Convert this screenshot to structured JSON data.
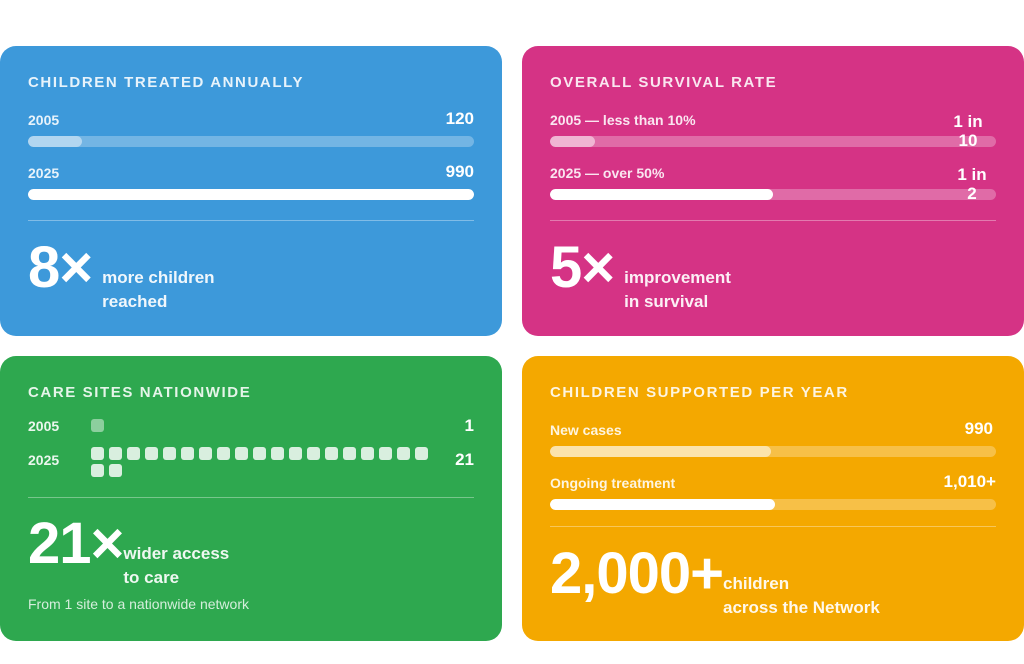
{
  "cards": {
    "children": {
      "title": "CHILDREN TREATED ANNUALLY",
      "color": "#3d99da",
      "rows": [
        {
          "label": "2005",
          "value": "120",
          "fraction": 0.12
        },
        {
          "label": "2025",
          "value": "990",
          "fraction": 1.0
        }
      ],
      "big": "8×",
      "caption_line1": "more children",
      "caption_line2": "reached"
    },
    "survival": {
      "title": "OVERALL SURVIVAL RATE",
      "color": "#d53385",
      "rows": [
        {
          "label": "2005 — less than 10%",
          "value_line1": "1 in",
          "value_line2": "10",
          "fraction": 0.1
        },
        {
          "label": "2025 — over 50%",
          "value_line1": "1 in",
          "value_line2": "2",
          "fraction": 0.5
        }
      ],
      "big": "5×",
      "caption_line1": "improvement",
      "caption_line2": "in survival"
    },
    "sites": {
      "title": "CARE SITES NATIONWIDE",
      "color": "#2ea84f",
      "rows": [
        {
          "label": "2005",
          "value": "1",
          "count": 1
        },
        {
          "label": "2025",
          "value": "21",
          "count": 21
        }
      ],
      "big": "21×",
      "caption_line1": "wider access",
      "caption_line2": "to care",
      "footnote": "From 1 site to a nationwide network"
    },
    "supported": {
      "title": "CHILDREN SUPPORTED PER YEAR",
      "color": "#f4a800",
      "rows": [
        {
          "label": "New cases",
          "value": "990",
          "fraction": 0.495
        },
        {
          "label": "Ongoing treatment",
          "value": "1,010+",
          "fraction": 0.505
        }
      ],
      "big": "2,000+",
      "caption_line1": "children",
      "caption_line2": "across the Network"
    }
  }
}
